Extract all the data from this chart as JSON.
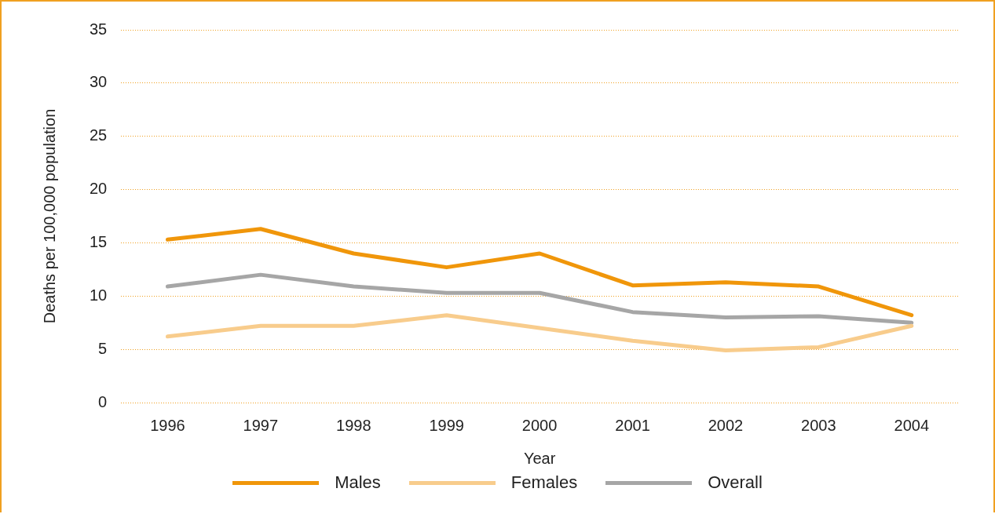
{
  "chart_data": {
    "type": "line",
    "xlabel": "Year",
    "ylabel": "Deaths per 100,000 population",
    "categories": [
      "1996",
      "1997",
      "1998",
      "1999",
      "2000",
      "2001",
      "2002",
      "2003",
      "2004"
    ],
    "series": [
      {
        "name": "Males",
        "color": "#f0960a",
        "values": [
          15.3,
          16.3,
          14.0,
          12.7,
          14.0,
          11.0,
          11.3,
          10.9,
          8.2
        ]
      },
      {
        "name": "Females",
        "color": "#f8cc8c",
        "values": [
          6.2,
          7.2,
          7.2,
          8.2,
          7.0,
          5.8,
          4.9,
          5.2,
          7.2
        ]
      },
      {
        "name": "Overall",
        "color": "#a6a6a6",
        "values": [
          10.9,
          12.0,
          10.9,
          10.3,
          10.3,
          8.5,
          8.0,
          8.1,
          7.5
        ]
      }
    ],
    "ylim": [
      0,
      35
    ],
    "yticks": [
      0,
      5,
      10,
      15,
      20,
      25,
      30,
      35
    ],
    "grid": "y",
    "legend": "bottom",
    "marker": "none",
    "line_style": "solid"
  }
}
